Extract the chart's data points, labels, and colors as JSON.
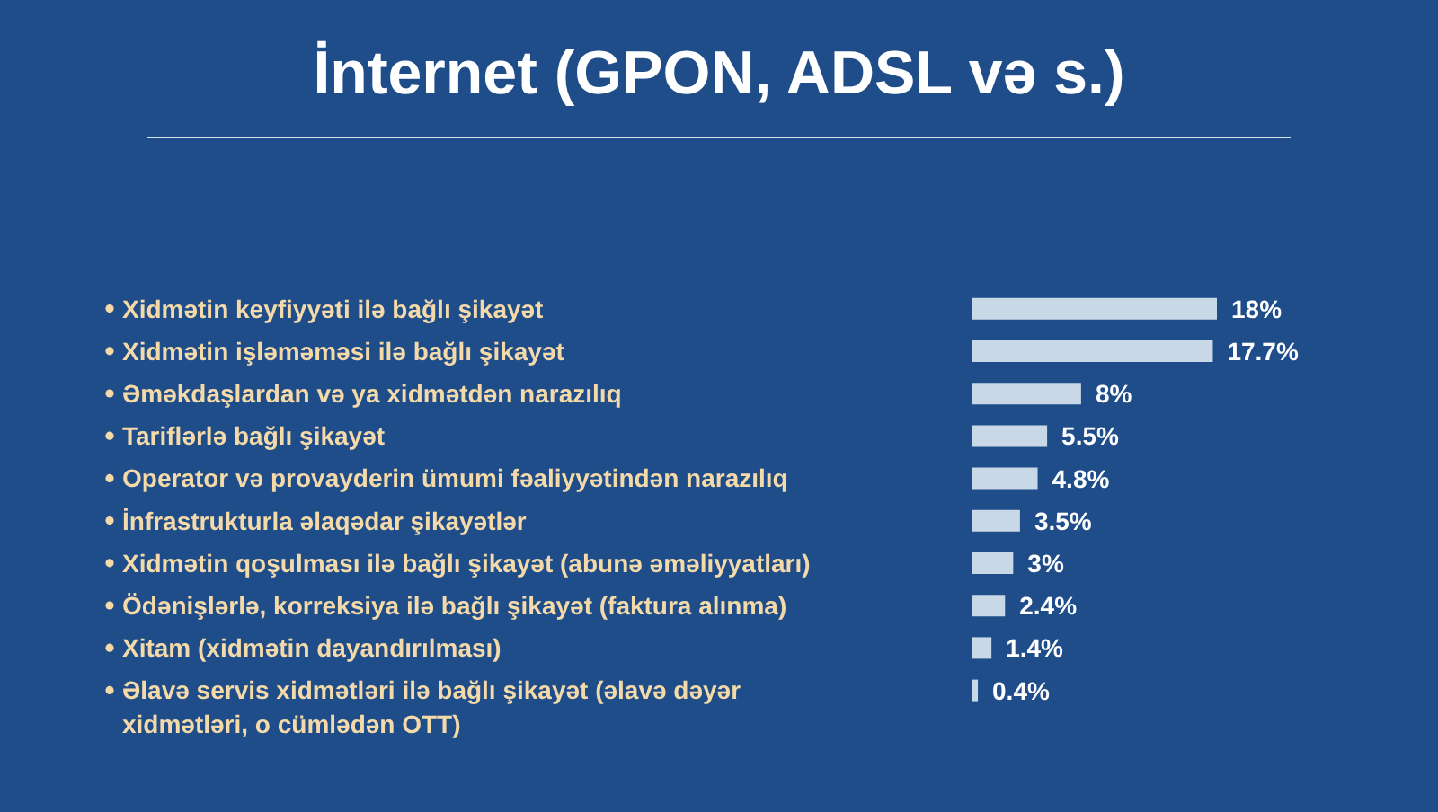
{
  "chart_data": {
    "type": "bar",
    "orientation": "horizontal",
    "title": "İnternet (GPON, ADSL və s.)",
    "categories": [
      "Xidmətin keyfiyyəti ilə bağlı şikayət",
      "Xidmətin işləməməsi ilə bağlı şikayət",
      "Əməkdaşlardan və ya xidmətdən narazılıq",
      "Tariflərlə bağlı şikayət",
      "Operator və provayderin ümumi fəaliyyətindən narazılıq",
      "İnfrastrukturla əlaqədar şikayətlər",
      "Xidmətin qoşulması ilə bağlı şikayət (abunə əməliyyatları)",
      "Ödənişlərlə, korreksiya ilə bağlı şikayət (faktura alınma)",
      "Xitam (xidmətin dayandırılması)",
      "Əlavə servis xidmətləri ilə bağlı şikayət (əlavə dəyər xidmətləri, o cümlədən OTT)"
    ],
    "values": [
      18,
      17.7,
      8,
      5.5,
      4.8,
      3.5,
      3,
      2.4,
      1.4,
      0.4
    ],
    "value_labels": [
      "18%",
      "17.7%",
      "8%",
      "5.5%",
      "4.8%",
      "3.5%",
      "3%",
      "2.4%",
      "1.4%",
      "0.4%"
    ],
    "color": "#c8d8e6"
  }
}
